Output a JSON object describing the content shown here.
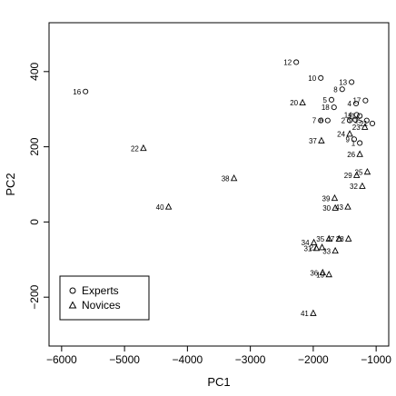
{
  "chart_data": {
    "type": "scatter",
    "title": "",
    "xlabel": "PC1",
    "ylabel": "PC2",
    "xlim": [
      -6200,
      -800
    ],
    "ylim": [
      -330,
      530
    ],
    "xticks": [
      -6000,
      -5000,
      -4000,
      -3000,
      -2000,
      -1000
    ],
    "xtick_labels": [
      "−6000",
      "−5000",
      "−4000",
      "−3000",
      "−2000",
      "−1000"
    ],
    "yticks": [
      -200,
      0,
      200,
      400
    ],
    "ytick_labels": [
      "−200",
      "0",
      "200",
      "400"
    ],
    "legend": {
      "position": "bottom-left",
      "entries": [
        {
          "label": "Experts",
          "marker": "circle"
        },
        {
          "label": "Novices",
          "marker": "triangle"
        }
      ]
    },
    "series": [
      {
        "name": "Experts",
        "marker": "circle",
        "points": [
          {
            "label": "1",
            "x": -1260,
            "y": 210
          },
          {
            "label": "2",
            "x": -1420,
            "y": 270
          },
          {
            "label": "3",
            "x": -1330,
            "y": 272
          },
          {
            "label": "4",
            "x": -1320,
            "y": 315
          },
          {
            "label": "5",
            "x": -1710,
            "y": 325
          },
          {
            "label": "6",
            "x": -1770,
            "y": 270
          },
          {
            "label": "7",
            "x": -1880,
            "y": 270
          },
          {
            "label": "8",
            "x": -1540,
            "y": 353
          },
          {
            "label": "9",
            "x": -1350,
            "y": 220
          },
          {
            "label": "10",
            "x": -1880,
            "y": 383
          },
          {
            "label": "11",
            "x": -1260,
            "y": 282
          },
          {
            "label": "12",
            "x": -2270,
            "y": 425
          },
          {
            "label": "13",
            "x": -1390,
            "y": 372
          },
          {
            "label": "14",
            "x": -1310,
            "y": 285
          },
          {
            "label": "15",
            "x": -1150,
            "y": 270
          },
          {
            "label": "16",
            "x": -5620,
            "y": 347
          },
          {
            "label": "17",
            "x": -1170,
            "y": 323
          },
          {
            "label": "18",
            "x": -1670,
            "y": 305
          },
          {
            "label": "21",
            "x": -1060,
            "y": 262
          }
        ]
      },
      {
        "name": "Novices",
        "marker": "triangle",
        "points": [
          {
            "label": "19",
            "x": -1750,
            "y": -140
          },
          {
            "label": "20",
            "x": -2170,
            "y": 317
          },
          {
            "label": "22",
            "x": -4700,
            "y": 196
          },
          {
            "label": "23",
            "x": -1180,
            "y": 252
          },
          {
            "label": "24",
            "x": -1420,
            "y": 234
          },
          {
            "label": "25",
            "x": -1140,
            "y": 133
          },
          {
            "label": "26",
            "x": -1260,
            "y": 180
          },
          {
            "label": "27",
            "x": -1860,
            "y": -68
          },
          {
            "label": "28",
            "x": -1440,
            "y": -45
          },
          {
            "label": "29",
            "x": -1310,
            "y": 124
          },
          {
            "label": "30",
            "x": -1650,
            "y": 37
          },
          {
            "label": "31",
            "x": -1950,
            "y": -70
          },
          {
            "label": "32",
            "x": -1220,
            "y": 95
          },
          {
            "label": "33",
            "x": -1650,
            "y": -77
          },
          {
            "label": "34",
            "x": -1990,
            "y": -55
          },
          {
            "label": "35",
            "x": -1750,
            "y": -45
          },
          {
            "label": "36",
            "x": -1850,
            "y": -135
          },
          {
            "label": "37",
            "x": -1870,
            "y": 216
          },
          {
            "label": "38",
            "x": -3260,
            "y": 116
          },
          {
            "label": "39",
            "x": -1660,
            "y": 63
          },
          {
            "label": "40",
            "x": -4300,
            "y": 40
          },
          {
            "label": "41",
            "x": -2000,
            "y": -243
          },
          {
            "label": "43",
            "x": -1450,
            "y": 40
          },
          {
            "label": "47",
            "x": -1590,
            "y": -45
          }
        ]
      }
    ]
  }
}
